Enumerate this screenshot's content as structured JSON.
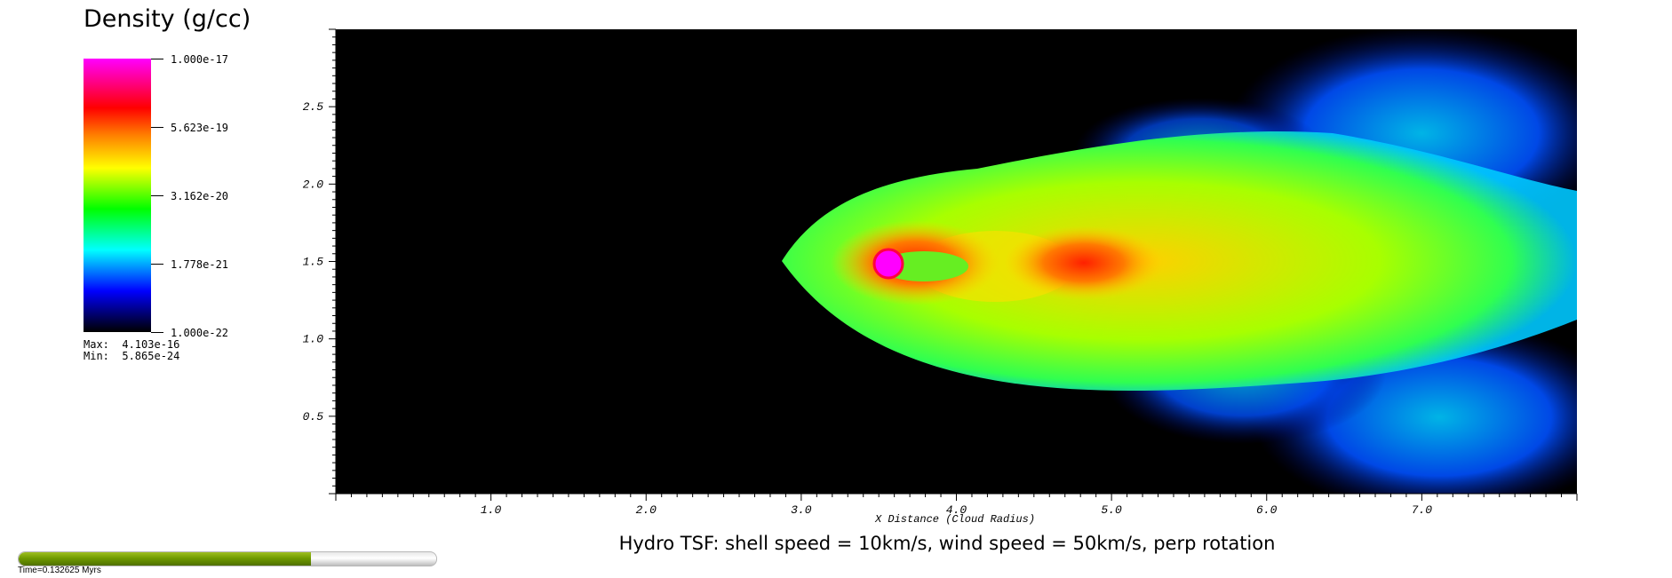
{
  "legend": {
    "title": "Density (g/cc)",
    "ticks": [
      "1.000e-17",
      "5.623e-19",
      "3.162e-20",
      "1.778e-21",
      "1.000e-22"
    ],
    "max_label": "Max:  4.103e-16",
    "min_label": "Min:  5.865e-24"
  },
  "chart_data": {
    "type": "heatmap",
    "title": "Hydro TSF: shell speed = 10km/s, wind speed = 50km/s, perp rotation",
    "xlabel": "X Distance (Cloud Radius)",
    "ylabel": "",
    "xlim": [
      0,
      8.0
    ],
    "ylim": [
      0,
      3.0
    ],
    "x_ticks": [
      "1.0",
      "2.0",
      "3.0",
      "4.0",
      "5.0",
      "6.0",
      "7.0"
    ],
    "y_ticks": [
      "0.5",
      "1.0",
      "1.5",
      "2.0",
      "2.5"
    ],
    "colorscale": {
      "variable": "Density (g/cc)",
      "scale": "log",
      "min": 1e-22,
      "max": 1e-17,
      "colors": [
        "#000000",
        "#0000ff",
        "#00ffff",
        "#00ff00",
        "#ffff00",
        "#ff7f00",
        "#ff0000",
        "#ff00ff"
      ],
      "data_max": 4.103e-16,
      "data_min": 5.865e-24
    },
    "features": {
      "cloud_center": [
        3.6,
        1.5
      ],
      "tail_direction": "+x",
      "background": "#000000"
    }
  },
  "time": {
    "label": "Time=0.132625 Myrs",
    "progress": 0.7
  }
}
